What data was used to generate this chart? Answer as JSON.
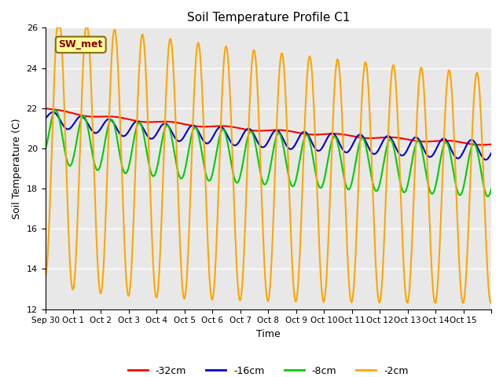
{
  "title": "Soil Temperature Profile C1",
  "xlabel": "Time",
  "ylabel": "Soil Temperature (C)",
  "ylim": [
    12,
    26
  ],
  "yticks": [
    12,
    14,
    16,
    18,
    20,
    22,
    24,
    26
  ],
  "annotation_label": "SW_met",
  "annotation_label_color": "#8B0000",
  "annotation_box_color": "#FFFF99",
  "annotation_box_edge": "#8B6914",
  "plot_bg_color": "#E8E8E8",
  "fig_bg_color": "#FFFFFF",
  "grid_color": "#FFFFFF",
  "series_colors": {
    "-32cm": "#FF0000",
    "-16cm": "#0000CC",
    "-8cm": "#00CC00",
    "-2cm": "#FFA500"
  },
  "series_linewidth": 1.5,
  "x_tick_labels": [
    "Sep 30",
    "Oct 1",
    "Oct 2",
    "Oct 3",
    "Oct 4",
    "Oct 5",
    "Oct 6",
    "Oct 7",
    "Oct 8",
    "Oct 9",
    "Oct 10",
    "Oct 11",
    "Oct 12",
    "Oct 13",
    "Oct 14",
    "Oct 15"
  ],
  "n_days": 16,
  "n_points_per_day": 48
}
